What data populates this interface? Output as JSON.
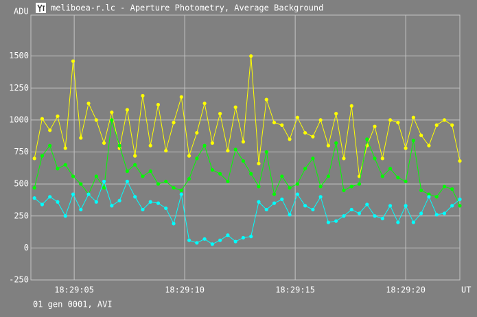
{
  "window_title": "meliboea-r.lc - Aperture Photometry, Average Background",
  "footer": "01 gen 0001, AVI",
  "chart_data": {
    "type": "line",
    "ylabel": "ADU",
    "xlabel": "UT",
    "x": [
      3.2,
      3.55,
      3.9,
      4.25,
      4.6,
      4.95,
      5.3,
      5.65,
      6,
      6.35,
      6.7,
      7.05,
      7.4,
      7.75,
      8.1,
      8.45,
      8.8,
      9.15,
      9.5,
      9.85,
      10.2,
      10.55,
      10.9,
      11.25,
      11.6,
      11.95,
      12.3,
      12.65,
      13,
      13.35,
      13.7,
      14.05,
      14.4,
      14.75,
      15.1,
      15.45,
      15.8,
      16.15,
      16.5,
      16.85,
      17.2,
      17.55,
      17.9,
      18.25,
      18.6,
      18.95,
      19.3,
      19.65,
      20,
      20.35,
      20.7,
      21.05,
      21.4,
      21.75,
      22.1,
      22.45
    ],
    "series": [
      {
        "color": "#ffff00",
        "values": [
          700,
          1010,
          920,
          1030,
          780,
          1460,
          860,
          1130,
          1000,
          820,
          1060,
          780,
          1080,
          720,
          1190,
          800,
          1120,
          760,
          980,
          1180,
          720,
          900,
          1130,
          820,
          1050,
          760,
          1100,
          830,
          1500,
          660,
          1160,
          980,
          960,
          850,
          1020,
          900,
          870,
          1000,
          800,
          1050,
          700,
          1110,
          560,
          800,
          950,
          700,
          1000,
          980,
          780,
          1020,
          880,
          800,
          960,
          1000,
          960,
          680
        ]
      },
      {
        "color": "#00ff00",
        "values": [
          470,
          720,
          800,
          620,
          650,
          560,
          500,
          420,
          560,
          470,
          1000,
          800,
          600,
          650,
          560,
          600,
          500,
          520,
          470,
          450,
          540,
          700,
          800,
          610,
          580,
          520,
          770,
          680,
          580,
          480,
          750,
          420,
          560,
          470,
          500,
          620,
          700,
          480,
          560,
          820,
          450,
          480,
          500,
          850,
          700,
          560,
          620,
          550,
          520,
          840,
          450,
          420,
          400,
          480,
          460,
          330
        ]
      },
      {
        "color": "#00ffff",
        "values": [
          390,
          340,
          400,
          360,
          250,
          420,
          300,
          420,
          360,
          520,
          330,
          370,
          520,
          400,
          300,
          360,
          350,
          310,
          190,
          420,
          60,
          40,
          70,
          30,
          60,
          100,
          50,
          80,
          90,
          360,
          300,
          350,
          380,
          260,
          420,
          330,
          300,
          400,
          200,
          210,
          250,
          300,
          270,
          340,
          250,
          230,
          330,
          200,
          330,
          200,
          270,
          400,
          260,
          270,
          330,
          380
        ]
      }
    ],
    "xlim": [
      3.04,
      22.45
    ],
    "xticks": [
      {
        "value": 5,
        "label": "18:29:05"
      },
      {
        "value": 10,
        "label": "18:29:10"
      },
      {
        "value": 15,
        "label": "18:29:15"
      },
      {
        "value": 20,
        "label": "18:29:20"
      }
    ],
    "ylim": [
      -250,
      1820
    ],
    "yticks": [
      -250,
      0,
      250,
      500,
      750,
      1000,
      1250,
      1500
    ],
    "grid": true
  }
}
